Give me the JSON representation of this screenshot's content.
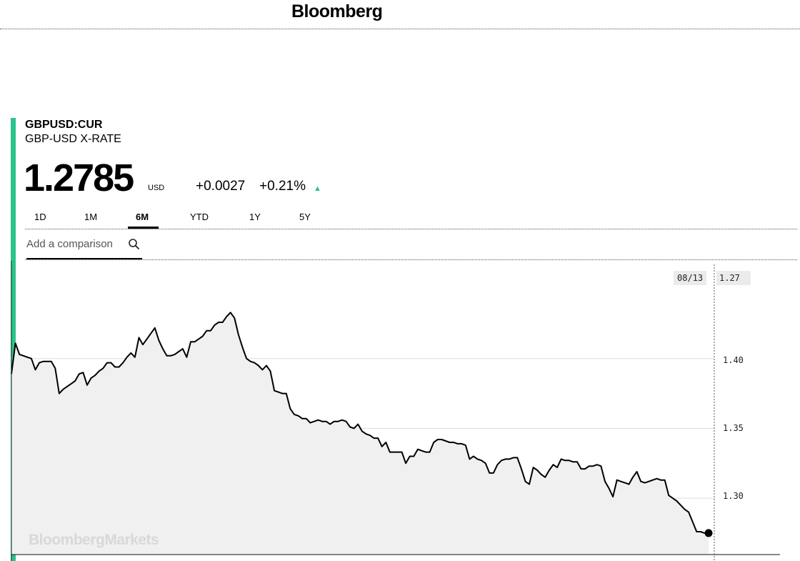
{
  "header": {
    "logo": "Bloomberg"
  },
  "quote": {
    "ticker": "GBPUSD:CUR",
    "name": "GBP-USD X-RATE",
    "price": "1.2785",
    "currency": "USD",
    "change": "+0.0027",
    "change_pct": "+0.21%",
    "direction_icon": "up-triangle-icon"
  },
  "tabs": [
    {
      "label": "1D",
      "active": false
    },
    {
      "label": "1M",
      "active": false
    },
    {
      "label": "6M",
      "active": true
    },
    {
      "label": "YTD",
      "active": false
    },
    {
      "label": "1Y",
      "active": false
    },
    {
      "label": "5Y",
      "active": false
    }
  ],
  "comparison": {
    "placeholder": "Add a comparison",
    "icon": "search-icon"
  },
  "chart": {
    "hover_date": "08/13",
    "hover_value": "1.27",
    "y_ticks": [
      "1.40",
      "1.35",
      "1.30"
    ],
    "watermark": "BloombergMarkets"
  },
  "colors": {
    "accent": "#2bc48a",
    "area_fill": "#f0f0f0",
    "line": "#000000"
  },
  "chart_data": {
    "type": "area",
    "ylim": [
      1.255,
      1.47
    ],
    "y_ticks": [
      1.4,
      1.35,
      1.3
    ],
    "grid": true,
    "values": [
      1.389,
      1.411,
      1.403,
      1.402,
      1.401,
      1.4,
      1.392,
      1.397,
      1.398,
      1.398,
      1.398,
      1.393,
      1.375,
      1.378,
      1.38,
      1.382,
      1.384,
      1.389,
      1.39,
      1.381,
      1.386,
      1.388,
      1.391,
      1.393,
      1.397,
      1.397,
      1.394,
      1.394,
      1.397,
      1.401,
      1.404,
      1.401,
      1.415,
      1.41,
      1.414,
      1.418,
      1.422,
      1.413,
      1.407,
      1.402,
      1.402,
      1.403,
      1.405,
      1.407,
      1.401,
      1.412,
      1.412,
      1.414,
      1.416,
      1.42,
      1.42,
      1.424,
      1.426,
      1.426,
      1.43,
      1.433,
      1.429,
      1.417,
      1.408,
      1.4,
      1.398,
      1.397,
      1.395,
      1.392,
      1.395,
      1.391,
      1.377,
      1.376,
      1.375,
      1.375,
      1.364,
      1.36,
      1.359,
      1.357,
      1.357,
      1.354,
      1.355,
      1.356,
      1.355,
      1.355,
      1.353,
      1.355,
      1.355,
      1.356,
      1.355,
      1.351,
      1.35,
      1.353,
      1.348,
      1.346,
      1.345,
      1.343,
      1.343,
      1.337,
      1.34,
      1.333,
      1.333,
      1.333,
      1.333,
      1.325,
      1.33,
      1.33,
      1.335,
      1.334,
      1.333,
      1.333,
      1.34,
      1.342,
      1.342,
      1.341,
      1.34,
      1.34,
      1.339,
      1.339,
      1.338,
      1.328,
      1.33,
      1.328,
      1.327,
      1.325,
      1.318,
      1.318,
      1.324,
      1.327,
      1.328,
      1.328,
      1.329,
      1.329,
      1.321,
      1.312,
      1.31,
      1.322,
      1.32,
      1.317,
      1.315,
      1.32,
      1.324,
      1.322,
      1.328,
      1.327,
      1.327,
      1.326,
      1.326,
      1.321,
      1.321,
      1.323,
      1.323,
      1.324,
      1.323,
      1.312,
      1.307,
      1.301,
      1.313,
      1.312,
      1.311,
      1.31,
      1.315,
      1.319,
      1.312,
      1.311,
      1.312,
      1.313,
      1.314,
      1.313,
      1.313,
      1.302,
      1.3,
      1.298,
      1.295,
      1.292,
      1.29,
      1.283,
      1.276,
      1.276,
      1.275,
      1.275
    ]
  }
}
